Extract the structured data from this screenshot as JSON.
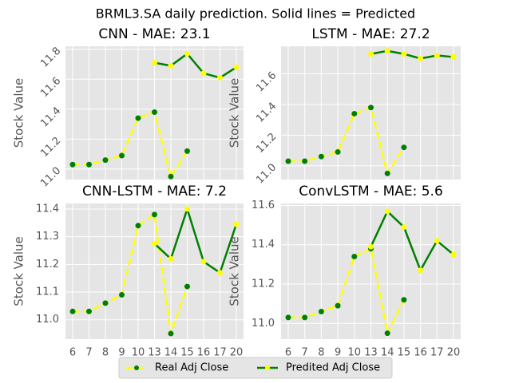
{
  "suptitle": "BRML3.SA daily prediction. Solid lines = Predicted",
  "chart_data": [
    {
      "type": "line",
      "title": "CNN - MAE: 23.1",
      "y_label": "Stock Value",
      "ytick_rotation": 45,
      "grid": true,
      "categories": [
        "6",
        "7",
        "8",
        "9",
        "10",
        "13",
        "14",
        "15",
        "16",
        "17",
        "20"
      ],
      "ylim": [
        10.93,
        11.82
      ],
      "yticks": [
        {
          "value": 11,
          "label": "11.0"
        },
        11.2,
        11.4,
        11.6,
        11.8
      ],
      "series": [
        {
          "name": "Real Adj Close",
          "color": "#ffff00",
          "marker_color": "#008000",
          "linestyle": "dashed",
          "values": [
            11.03,
            11.03,
            11.06,
            11.09,
            11.34,
            11.38,
            10.95,
            11.12,
            null,
            null,
            null
          ]
        },
        {
          "name": "Predited Adj Close",
          "color": "#008000",
          "marker_color": "#ffff00",
          "linestyle": "solid",
          "values": [
            null,
            null,
            null,
            null,
            null,
            11.71,
            11.69,
            11.77,
            11.64,
            11.61,
            11.68
          ]
        }
      ]
    },
    {
      "type": "line",
      "title": "LSTM - MAE: 27.2",
      "y_label": "Stock Value",
      "ytick_rotation": 45,
      "grid": true,
      "categories": [
        "6",
        "7",
        "8",
        "9",
        "10",
        "13",
        "14",
        "15",
        "16",
        "17",
        "20"
      ],
      "ylim": [
        10.91,
        11.78
      ],
      "yticks": [
        {
          "value": 11,
          "label": "11.0"
        },
        11.2,
        11.4,
        11.6
      ],
      "series": [
        {
          "name": "Real Adj Close",
          "color": "#ffff00",
          "marker_color": "#008000",
          "linestyle": "dashed",
          "values": [
            11.03,
            11.03,
            11.06,
            11.09,
            11.34,
            11.38,
            10.95,
            11.12,
            null,
            null,
            null
          ]
        },
        {
          "name": "Predited Adj Close",
          "color": "#008000",
          "marker_color": "#ffff00",
          "linestyle": "solid",
          "values": [
            null,
            null,
            null,
            null,
            null,
            11.73,
            11.75,
            11.73,
            11.7,
            11.72,
            11.71
          ]
        }
      ]
    },
    {
      "type": "line",
      "title": "CNN-LSTM - MAE: 7.2",
      "y_label": "Stock Value",
      "ytick_rotation": 0,
      "grid": true,
      "categories": [
        "6",
        "7",
        "8",
        "9",
        "10",
        "13",
        "14",
        "15",
        "16",
        "17",
        "20"
      ],
      "ylim": [
        10.93,
        11.42
      ],
      "yticks": [
        {
          "value": 11,
          "label": "11.0"
        },
        11.1,
        11.2,
        11.3,
        11.4
      ],
      "series": [
        {
          "name": "Real Adj Close",
          "color": "#ffff00",
          "marker_color": "#008000",
          "linestyle": "dashed",
          "values": [
            11.03,
            11.03,
            11.06,
            11.09,
            11.34,
            11.38,
            10.95,
            11.12,
            null,
            null,
            null
          ]
        },
        {
          "name": "Predited Adj Close",
          "color": "#008000",
          "marker_color": "#ffff00",
          "linestyle": "solid",
          "values": [
            null,
            null,
            null,
            null,
            null,
            11.275,
            11.22,
            11.4,
            11.21,
            11.17,
            11.345
          ]
        }
      ]
    },
    {
      "type": "line",
      "title": "ConvLSTM - MAE: 5.6",
      "y_label": "Stock Value",
      "ytick_rotation": 0,
      "grid": true,
      "categories": [
        "6",
        "7",
        "8",
        "9",
        "10",
        "13",
        "14",
        "15",
        "16",
        "17",
        "20"
      ],
      "ylim": [
        10.92,
        11.61
      ],
      "yticks": [
        {
          "value": 11,
          "label": "11.0"
        },
        11.2,
        11.4,
        11.6
      ],
      "series": [
        {
          "name": "Real Adj Close",
          "color": "#ffff00",
          "marker_color": "#008000",
          "linestyle": "dashed",
          "values": [
            11.03,
            11.03,
            11.06,
            11.09,
            11.34,
            11.38,
            10.95,
            11.12,
            null,
            null,
            null
          ]
        },
        {
          "name": "Predited Adj Close",
          "color": "#008000",
          "marker_color": "#ffff00",
          "linestyle": "solid",
          "values": [
            null,
            null,
            null,
            null,
            null,
            11.39,
            11.57,
            11.49,
            11.27,
            11.42,
            11.35
          ]
        }
      ]
    }
  ]
}
